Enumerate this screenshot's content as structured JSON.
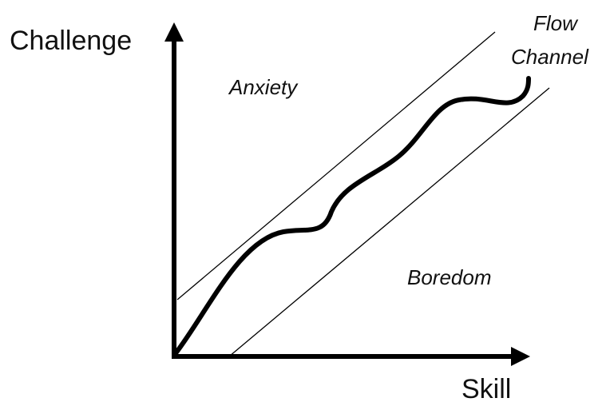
{
  "axes": {
    "y_label": "Challenge",
    "x_label": "Skill"
  },
  "regions": {
    "anxiety": "Anxiety",
    "boredom": "Boredom",
    "flow_line1": "Flow",
    "flow_line2": "Channel"
  }
}
